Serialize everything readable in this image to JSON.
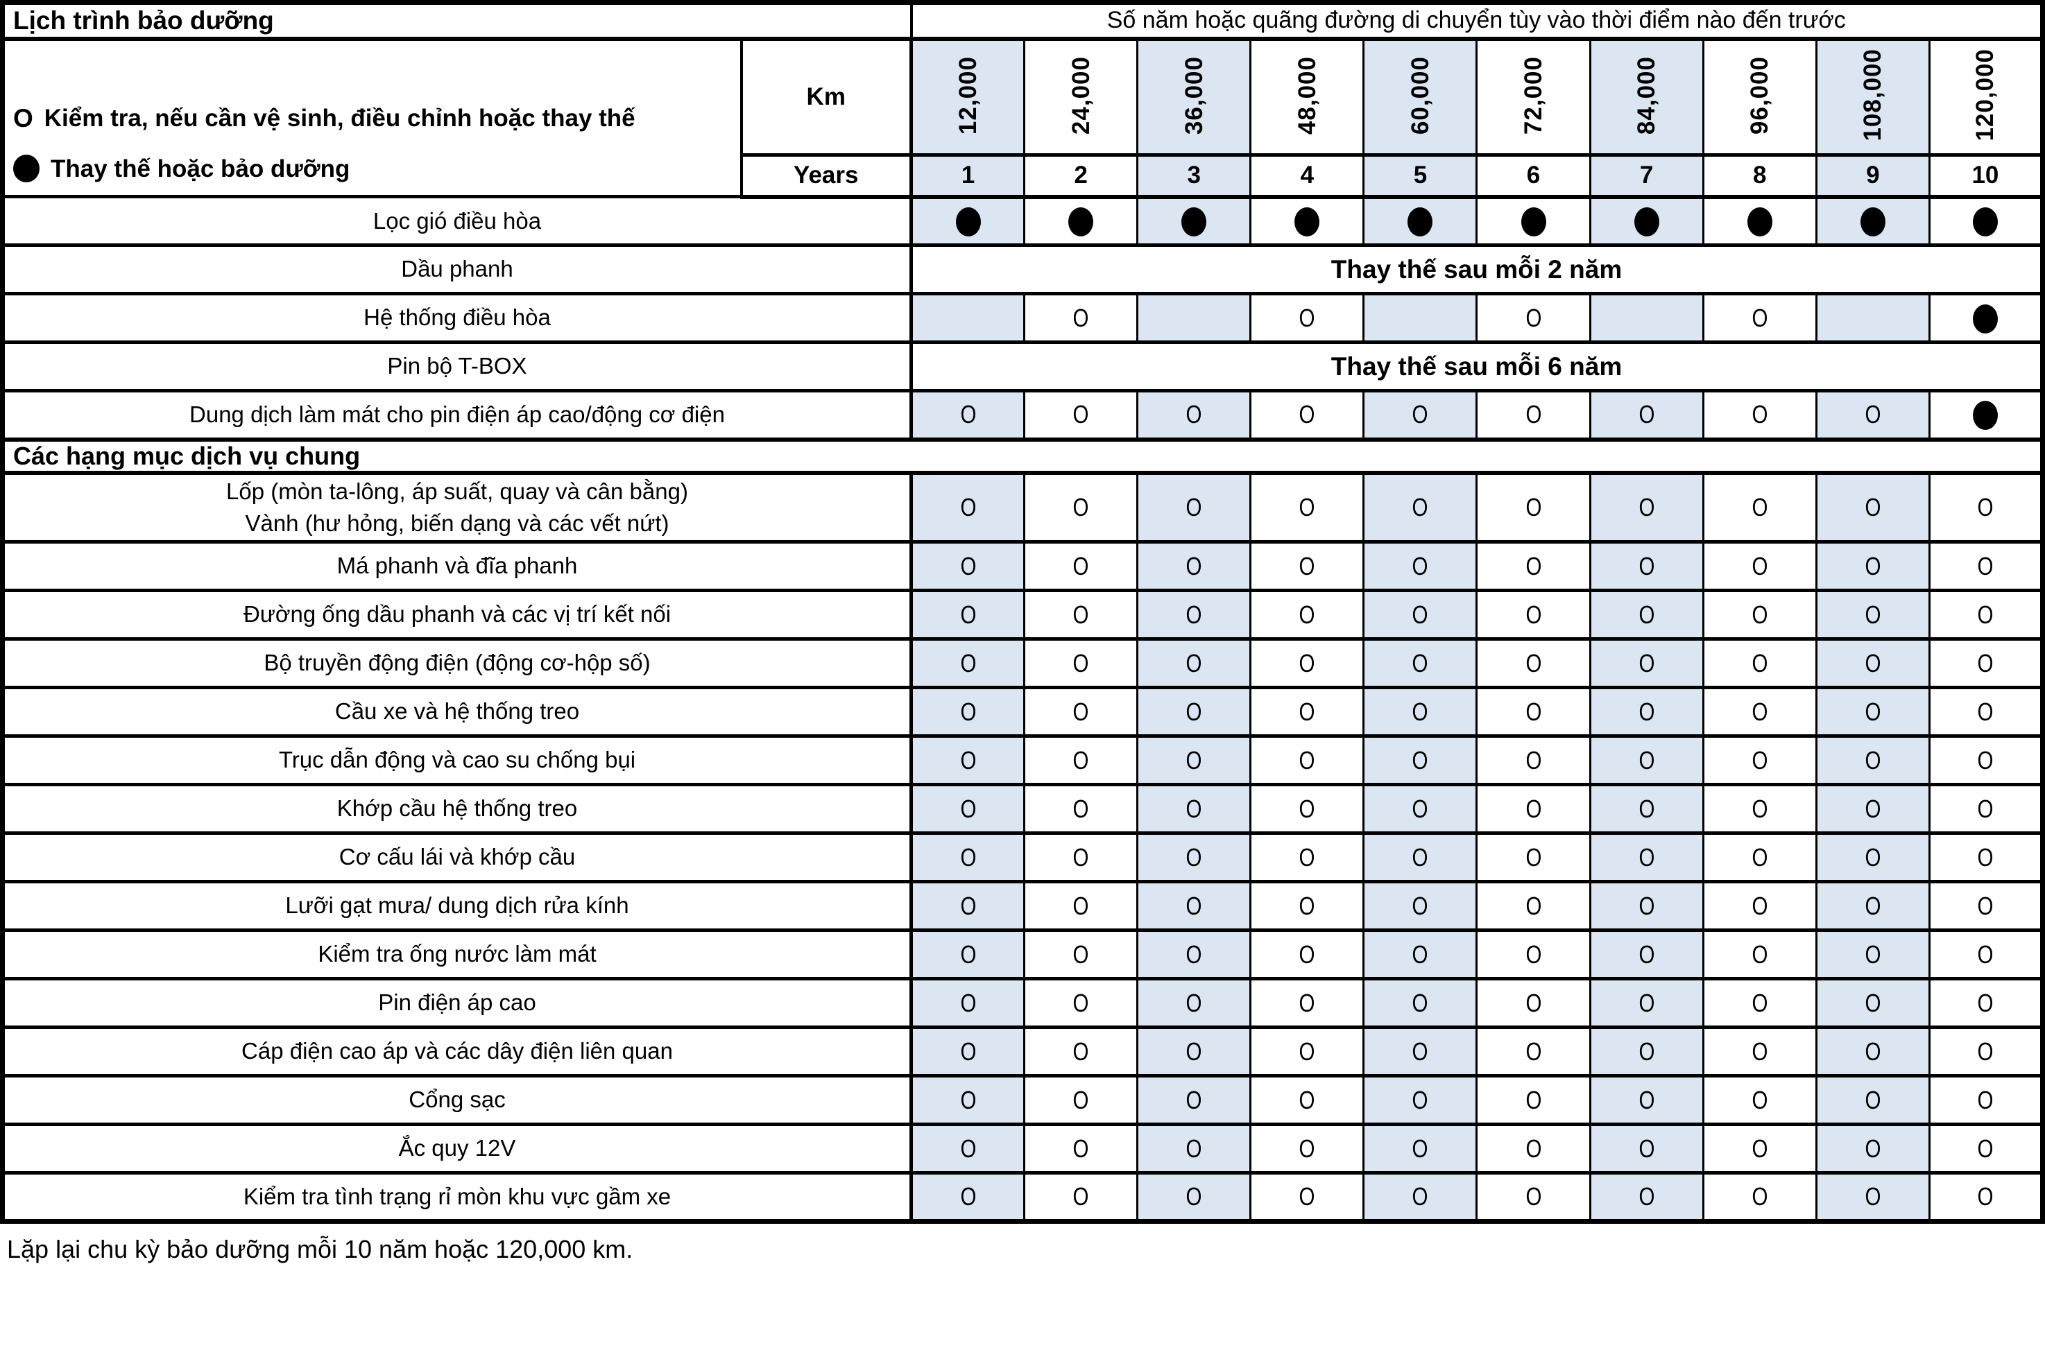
{
  "title": "Lịch trình bảo dưỡng",
  "subtitle": "Số năm hoặc quãng đường di chuyển tùy vào thời điểm nào đến trước",
  "legend": [
    {
      "symbol": "O",
      "text": "Kiểm tra, nếu cần vệ sinh, điều chỉnh hoặc thay thế"
    },
    {
      "symbol": "●",
      "text": "Thay thế hoặc bảo dưỡng"
    }
  ],
  "columns": {
    "km_label": "Km",
    "years_label": "Years",
    "km": [
      "12,000",
      "24,000",
      "36,000",
      "48,000",
      "60,000",
      "72,000",
      "84,000",
      "96,000",
      "108,000",
      "120,000"
    ],
    "years": [
      "1",
      "2",
      "3",
      "4",
      "5",
      "6",
      "7",
      "8",
      "9",
      "10"
    ]
  },
  "rows": [
    {
      "type": "item",
      "label": "Lọc gió điều hòa",
      "cells": [
        "●",
        "●",
        "●",
        "●",
        "●",
        "●",
        "●",
        "●",
        "●",
        "●"
      ]
    },
    {
      "type": "note",
      "label": "Dầu phanh",
      "note": "Thay thế sau mỗi 2 năm"
    },
    {
      "type": "item",
      "label": "Hệ thống điều hòa",
      "cells": [
        "",
        "O",
        "",
        "O",
        "",
        "O",
        "",
        "O",
        "",
        "●"
      ]
    },
    {
      "type": "note",
      "label": "Pin bộ T-BOX",
      "note": "Thay thế sau mỗi 6 năm"
    },
    {
      "type": "item",
      "label": "Dung dịch làm mát cho pin điện áp cao/động cơ điện",
      "cells": [
        "O",
        "O",
        "O",
        "O",
        "O",
        "O",
        "O",
        "O",
        "O",
        "●"
      ]
    },
    {
      "type": "section",
      "label": "Các hạng mục dịch vụ chung"
    },
    {
      "type": "item",
      "label": "Lốp (mòn ta-lông, áp suất, quay và cân bằng)",
      "label2": "Vành (hư hỏng, biến dạng và các vết nứt)",
      "cells": [
        "O",
        "O",
        "O",
        "O",
        "O",
        "O",
        "O",
        "O",
        "O",
        "O"
      ]
    },
    {
      "type": "item",
      "label": "Má phanh và đĩa phanh",
      "cells": [
        "O",
        "O",
        "O",
        "O",
        "O",
        "O",
        "O",
        "O",
        "O",
        "O"
      ]
    },
    {
      "type": "item",
      "label": "Đường ống dầu phanh và các vị trí kết nối",
      "cells": [
        "O",
        "O",
        "O",
        "O",
        "O",
        "O",
        "O",
        "O",
        "O",
        "O"
      ]
    },
    {
      "type": "item",
      "label": "Bộ truyền động điện (động cơ-hộp số)",
      "cells": [
        "O",
        "O",
        "O",
        "O",
        "O",
        "O",
        "O",
        "O",
        "O",
        "O"
      ]
    },
    {
      "type": "item",
      "label": "Cầu xe và hệ thống treo",
      "cells": [
        "O",
        "O",
        "O",
        "O",
        "O",
        "O",
        "O",
        "O",
        "O",
        "O"
      ]
    },
    {
      "type": "item",
      "label": "Trục dẫn động và cao su chống bụi",
      "cells": [
        "O",
        "O",
        "O",
        "O",
        "O",
        "O",
        "O",
        "O",
        "O",
        "O"
      ]
    },
    {
      "type": "item",
      "label": "Khớp cầu hệ thống treo",
      "cells": [
        "O",
        "O",
        "O",
        "O",
        "O",
        "O",
        "O",
        "O",
        "O",
        "O"
      ]
    },
    {
      "type": "item",
      "label": "Cơ cấu lái và khớp cầu",
      "cells": [
        "O",
        "O",
        "O",
        "O",
        "O",
        "O",
        "O",
        "O",
        "O",
        "O"
      ]
    },
    {
      "type": "item",
      "label": "Lưỡi gạt mưa/ dung dịch rửa kính",
      "cells": [
        "O",
        "O",
        "O",
        "O",
        "O",
        "O",
        "O",
        "O",
        "O",
        "O"
      ]
    },
    {
      "type": "item",
      "label": "Kiểm tra ống nước làm mát",
      "cells": [
        "O",
        "O",
        "O",
        "O",
        "O",
        "O",
        "O",
        "O",
        "O",
        "O"
      ]
    },
    {
      "type": "item",
      "label": "Pin điện áp cao",
      "cells": [
        "O",
        "O",
        "O",
        "O",
        "O",
        "O",
        "O",
        "O",
        "O",
        "O"
      ]
    },
    {
      "type": "item",
      "label": "Cáp điện cao áp và các dây điện liên quan",
      "cells": [
        "O",
        "O",
        "O",
        "O",
        "O",
        "O",
        "O",
        "O",
        "O",
        "O"
      ]
    },
    {
      "type": "item",
      "label": "Cổng sạc",
      "cells": [
        "O",
        "O",
        "O",
        "O",
        "O",
        "O",
        "O",
        "O",
        "O",
        "O"
      ]
    },
    {
      "type": "item",
      "label": "Ắc quy 12V",
      "cells": [
        "O",
        "O",
        "O",
        "O",
        "O",
        "O",
        "O",
        "O",
        "O",
        "O"
      ]
    },
    {
      "type": "item",
      "label": "Kiểm tra tình trạng rỉ mòn khu vực gầm xe",
      "cells": [
        "O",
        "O",
        "O",
        "O",
        "O",
        "O",
        "O",
        "O",
        "O",
        "O"
      ]
    }
  ],
  "footer": "Lặp lại chu kỳ bảo dưỡng mỗi 10 năm hoặc 120,000 km.",
  "colors": {
    "band": "#dbe6f2",
    "border": "#000000",
    "background": "#ffffff"
  }
}
